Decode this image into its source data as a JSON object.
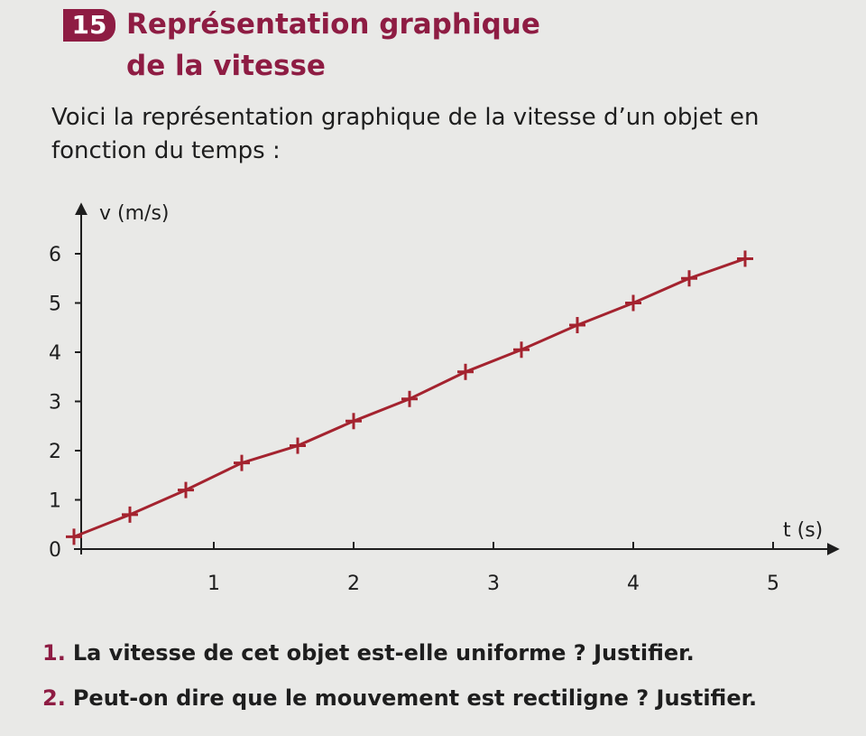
{
  "exercise": {
    "number": "15",
    "title_line1": "Représentation graphique",
    "title_line2": "de la vitesse",
    "intro": "Voici la représentation graphique de la vitesse d’un objet en fonction du temps :"
  },
  "questions": [
    {
      "number": "1.",
      "text": "La vitesse de cet objet est-elle uniforme ? Justifier."
    },
    {
      "number": "2.",
      "text": "Peut-on dire que le mouvement est rectiligne ? Justifier."
    }
  ],
  "colors": {
    "accent": "#8e1c43",
    "data": "#a4232f",
    "axis": "#1e1e1e"
  },
  "chart_data": {
    "type": "line",
    "xlabel": "t (s)",
    "ylabel": "v (m/s)",
    "xlim": [
      0,
      5.5
    ],
    "ylim": [
      0,
      6.5
    ],
    "x_ticks": [
      1,
      2,
      3,
      4,
      5
    ],
    "y_ticks": [
      0,
      1,
      2,
      3,
      4,
      5,
      6
    ],
    "grid": false,
    "markers": "+",
    "series": [
      {
        "x": [
          0,
          0.4,
          0.8,
          1.2,
          1.6,
          2.0,
          2.4,
          2.8,
          3.2,
          3.6,
          4.0,
          4.4,
          4.8
        ],
        "y": [
          0.25,
          0.7,
          1.2,
          1.75,
          2.1,
          2.6,
          3.05,
          3.6,
          4.05,
          4.55,
          5.0,
          5.5,
          5.9
        ]
      }
    ]
  }
}
